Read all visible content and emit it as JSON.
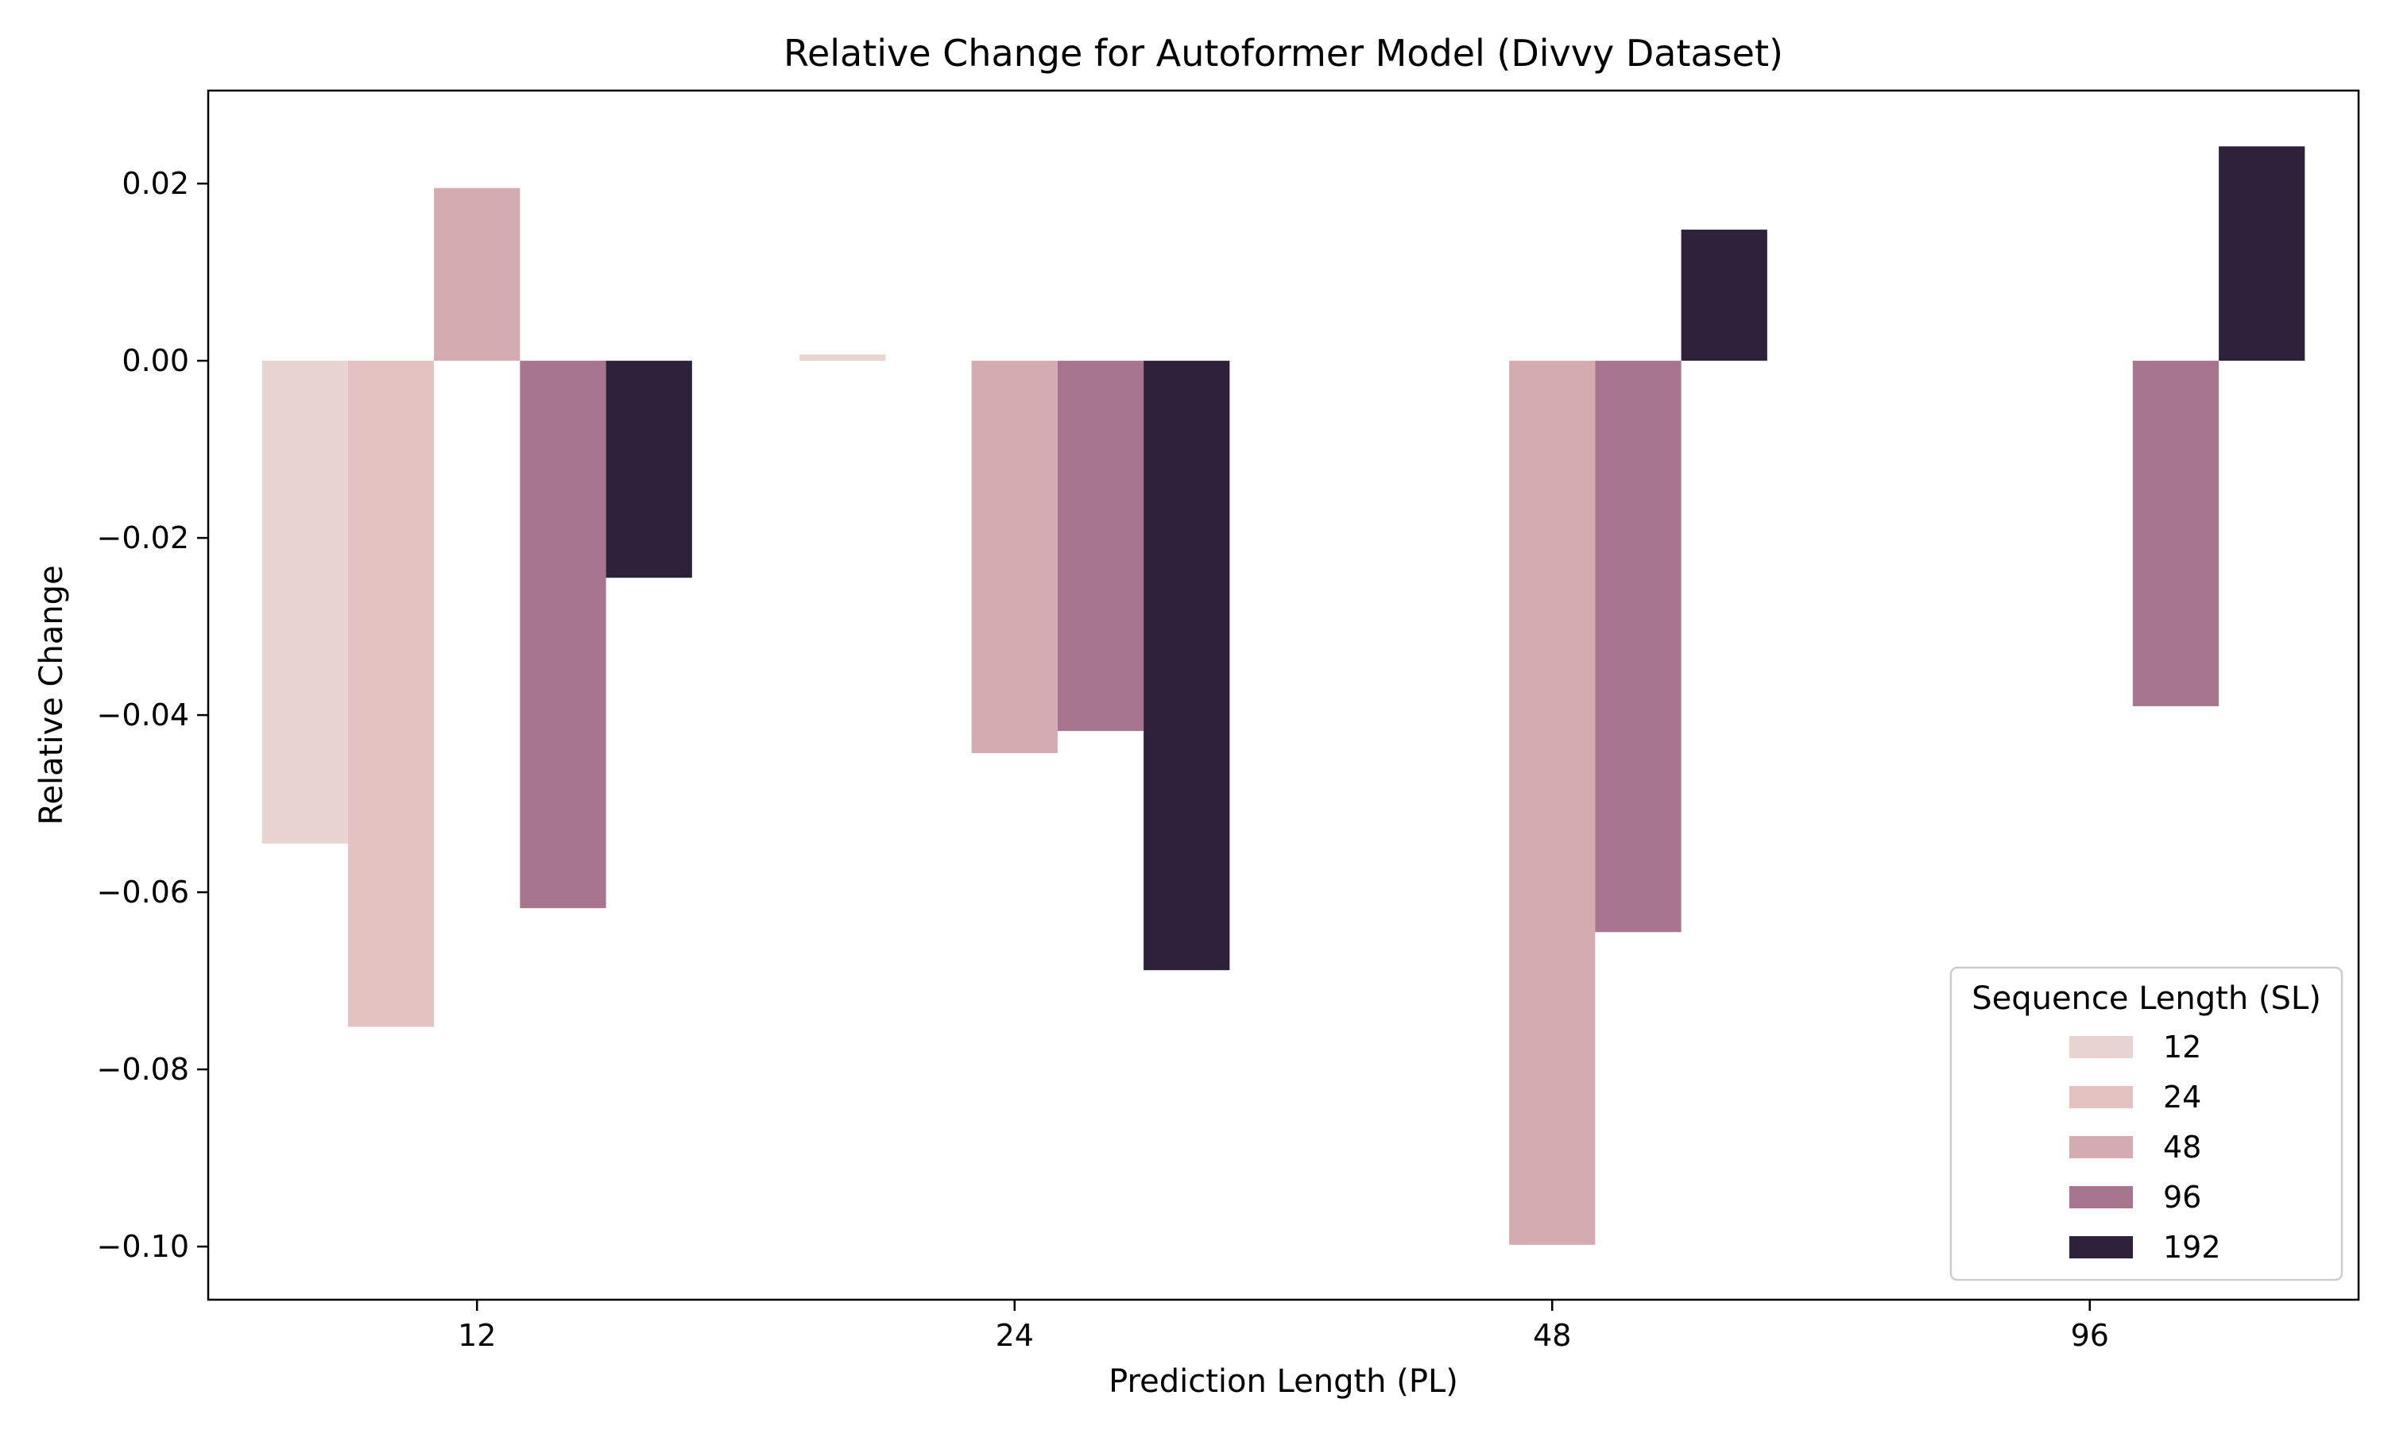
{
  "chart_data": {
    "type": "bar",
    "title": "Relative Change for Autoformer Model (Divvy Dataset)",
    "xlabel": "Prediction Length (PL)",
    "ylabel": "Relative Change",
    "categories": [
      "12",
      "24",
      "48",
      "96"
    ],
    "ylim": [
      -0.106,
      0.0305
    ],
    "yticks": [
      -0.1,
      -0.08,
      -0.06,
      -0.04,
      -0.02,
      0.0,
      0.02
    ],
    "ytick_labels": [
      "−0.10",
      "−0.08",
      "−0.06",
      "−0.04",
      "−0.02",
      "0.00",
      "0.02"
    ],
    "grid": false,
    "legend": {
      "title": "Sequence Length (SL)",
      "placement": "lower-right"
    },
    "series": [
      {
        "name": "12",
        "color": "#e8d5d2",
        "values": [
          -0.0545,
          0.0007,
          null,
          null
        ]
      },
      {
        "name": "24",
        "color": "#e2c3c2",
        "values": [
          -0.0752,
          null,
          null,
          null
        ]
      },
      {
        "name": "48",
        "color": "#d4abb1",
        "values": [
          0.0195,
          -0.0443,
          -0.0998,
          null
        ]
      },
      {
        "name": "96",
        "color": "#a7758e",
        "values": [
          -0.0618,
          -0.0418,
          -0.0645,
          -0.039
        ]
      },
      {
        "name": "192",
        "color": "#2e213a",
        "values": [
          -0.0245,
          -0.0688,
          0.0148,
          0.0242
        ]
      }
    ]
  }
}
